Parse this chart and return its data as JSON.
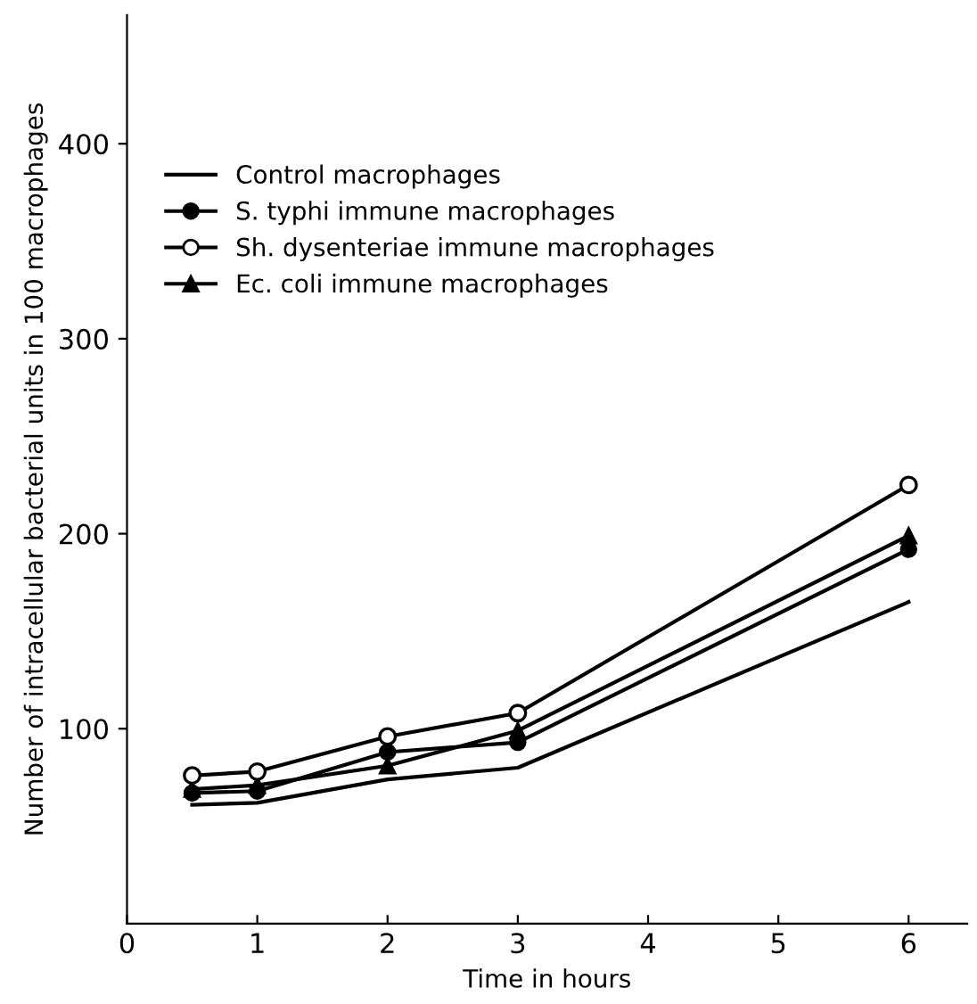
{
  "chart_data": {
    "type": "line",
    "xlabel": "Time in hours",
    "ylabel": "Number of intracellular bacterial units in 100 macrophages",
    "x": [
      0.5,
      1,
      2,
      3,
      6
    ],
    "series": [
      {
        "name": "Control macrophages",
        "color": "#000000",
        "marker": "none",
        "values": [
          61,
          62,
          74,
          80,
          165
        ]
      },
      {
        "name": "S. typhi immune macrophages",
        "color": "#000000",
        "marker": "circle",
        "values": [
          67,
          68,
          88,
          93,
          192
        ]
      },
      {
        "name": "Sh. dysenteriae immune macrophages",
        "color": "#000000",
        "marker": "circle",
        "colors": [
          "#ffffff",
          "#ffffff",
          "#ffffff",
          "#ffffff",
          "#ffffff"
        ],
        "values": [
          76,
          78,
          96,
          108,
          225
        ]
      },
      {
        "name": "Ec. coli immune macrophages",
        "color": "#000000",
        "marker": "triangle",
        "values": [
          69,
          71,
          81,
          99,
          199
        ]
      }
    ],
    "xlim": [
      0,
      6.45
    ],
    "xticks": [
      0,
      1,
      2,
      3,
      4,
      5,
      6
    ],
    "ylim": [
      0,
      466
    ],
    "yticks": [
      100,
      200,
      300,
      400
    ],
    "grid": false,
    "legend": "top left",
    "line_style": "solid"
  }
}
